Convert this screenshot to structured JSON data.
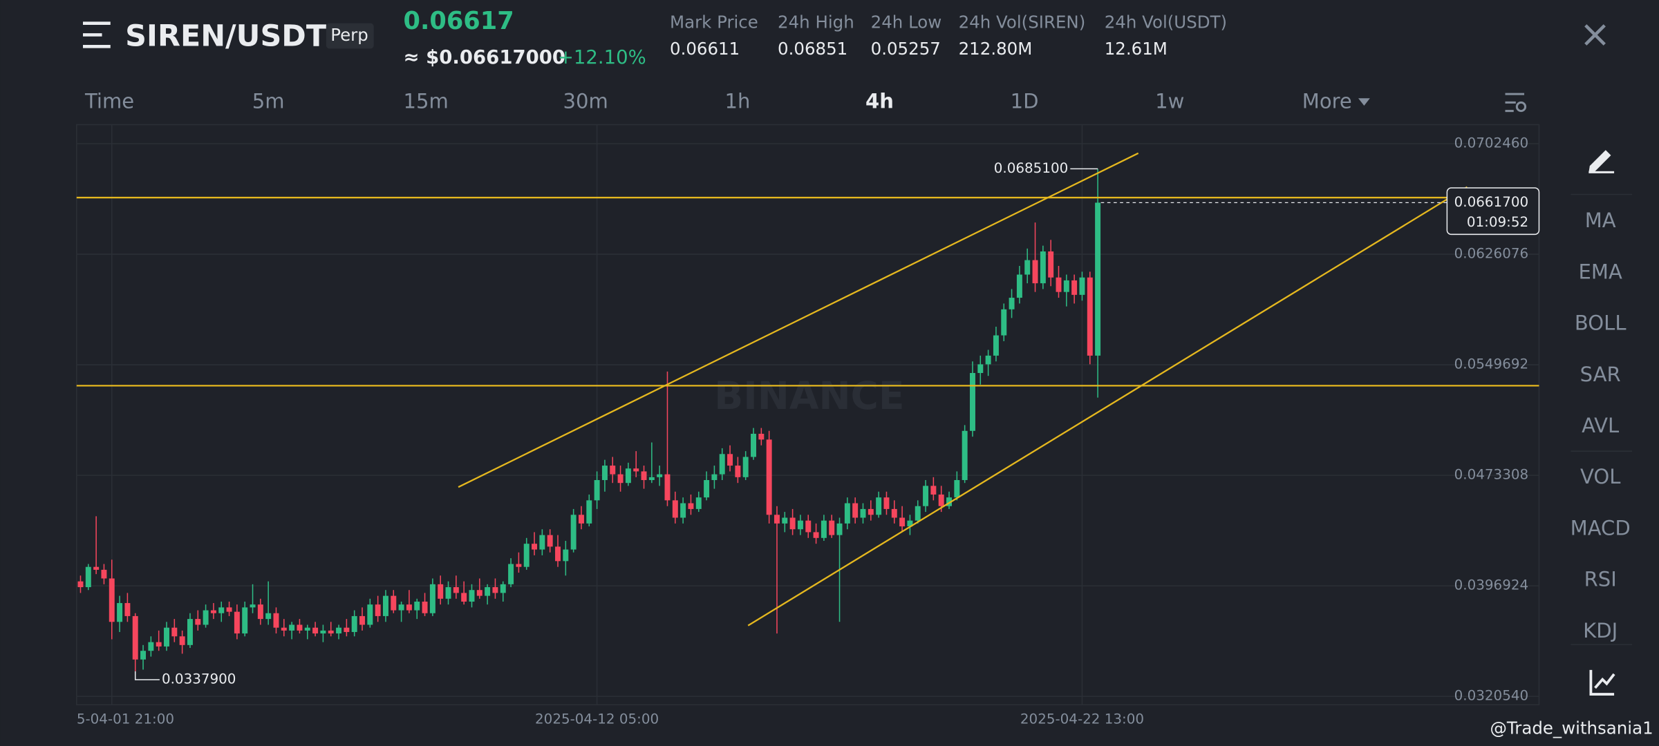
{
  "header": {
    "pair": "SIREN/USDT",
    "badge": "Perp",
    "last_price": "0.06617",
    "fiat_price": "≈ $0.06617000",
    "change": "+12.10%",
    "stats": [
      {
        "label": "Mark Price",
        "value": "0.06611"
      },
      {
        "label": "24h High",
        "value": "0.06851"
      },
      {
        "label": "24h Low",
        "value": "0.05257"
      },
      {
        "label": "24h Vol(SIREN)",
        "value": "212.80M"
      },
      {
        "label": "24h Vol(USDT)",
        "value": "12.61M"
      }
    ]
  },
  "timeframes": {
    "items": [
      "Time",
      "5m",
      "15m",
      "30m",
      "1h",
      "4h",
      "1D",
      "1w",
      "More"
    ],
    "active": "4h"
  },
  "indicators": [
    "MA",
    "EMA",
    "BOLL",
    "SAR",
    "AVL",
    "VOL",
    "MACD",
    "RSI",
    "KDJ"
  ],
  "chart_data": {
    "type": "candlestick",
    "categories": [
      null,
      null,
      null,
      null,
      "5-04-01 21:00",
      null,
      null,
      null,
      null,
      null,
      null,
      null,
      null,
      null,
      null,
      null,
      null,
      null,
      null,
      null,
      null,
      null,
      null,
      null,
      null,
      null,
      null,
      null,
      null,
      null,
      null,
      null,
      null,
      null,
      null,
      null,
      null,
      null,
      null,
      null,
      null,
      null,
      null,
      null,
      null,
      null,
      null,
      null,
      null,
      null,
      null,
      null,
      null,
      null,
      null,
      null,
      null,
      null,
      null,
      null,
      null,
      null,
      null,
      null,
      null,
      null,
      "2025-04-12 05:00",
      null,
      null,
      null,
      null,
      null,
      null,
      null,
      null,
      null,
      null,
      null,
      null,
      null,
      null,
      null,
      null,
      null,
      null,
      null,
      null,
      null,
      null,
      null,
      null,
      null,
      null,
      null,
      null,
      null,
      null,
      null,
      null,
      null,
      null,
      null,
      null,
      null,
      null,
      null,
      null,
      null,
      null,
      null,
      null,
      null,
      null,
      null,
      null,
      null,
      null,
      null,
      null,
      null,
      null,
      null,
      null,
      null,
      null,
      null,
      null,
      null,
      "2025-04-22 13:00",
      null,
      null
    ],
    "candles": [
      [
        0.04,
        0.0404,
        0.0392,
        0.0396
      ],
      [
        0.0396,
        0.0412,
        0.0394,
        0.041
      ],
      [
        0.041,
        0.0445,
        0.0405,
        0.0408
      ],
      [
        0.0408,
        0.0412,
        0.0398,
        0.0402
      ],
      [
        0.0402,
        0.0415,
        0.036,
        0.0372
      ],
      [
        0.0372,
        0.039,
        0.0365,
        0.0385
      ],
      [
        0.0385,
        0.0392,
        0.0372,
        0.0376
      ],
      [
        0.0376,
        0.0378,
        0.03379,
        0.0346
      ],
      [
        0.0346,
        0.0356,
        0.0339,
        0.0352
      ],
      [
        0.0352,
        0.0362,
        0.0348,
        0.0358
      ],
      [
        0.0358,
        0.0366,
        0.0352,
        0.0355
      ],
      [
        0.0355,
        0.0372,
        0.0352,
        0.0368
      ],
      [
        0.0368,
        0.0374,
        0.0358,
        0.0362
      ],
      [
        0.0362,
        0.0366,
        0.035,
        0.0356
      ],
      [
        0.0356,
        0.0378,
        0.0354,
        0.0374
      ],
      [
        0.0374,
        0.038,
        0.0366,
        0.037
      ],
      [
        0.037,
        0.0384,
        0.0368,
        0.038
      ],
      [
        0.038,
        0.0385,
        0.0374,
        0.0378
      ],
      [
        0.0378,
        0.0386,
        0.0372,
        0.0382
      ],
      [
        0.0382,
        0.0386,
        0.0376,
        0.0379
      ],
      [
        0.0379,
        0.0384,
        0.036,
        0.0364
      ],
      [
        0.0364,
        0.0386,
        0.0362,
        0.0382
      ],
      [
        0.0382,
        0.0398,
        0.0378,
        0.0384
      ],
      [
        0.0384,
        0.0388,
        0.037,
        0.0374
      ],
      [
        0.0374,
        0.04,
        0.037,
        0.0378
      ],
      [
        0.0378,
        0.0382,
        0.0364,
        0.0368
      ],
      [
        0.0368,
        0.0374,
        0.0362,
        0.0366
      ],
      [
        0.0366,
        0.0372,
        0.036,
        0.037
      ],
      [
        0.037,
        0.0374,
        0.0364,
        0.0366
      ],
      [
        0.0366,
        0.037,
        0.036,
        0.0368
      ],
      [
        0.0368,
        0.0372,
        0.0362,
        0.0364
      ],
      [
        0.0364,
        0.037,
        0.0358,
        0.0366
      ],
      [
        0.0366,
        0.0372,
        0.0362,
        0.0364
      ],
      [
        0.0364,
        0.037,
        0.036,
        0.0368
      ],
      [
        0.0368,
        0.0374,
        0.0362,
        0.0365
      ],
      [
        0.0365,
        0.038,
        0.0362,
        0.0376
      ],
      [
        0.0376,
        0.0382,
        0.0366,
        0.037
      ],
      [
        0.037,
        0.0388,
        0.0368,
        0.0384
      ],
      [
        0.0384,
        0.039,
        0.0372,
        0.0376
      ],
      [
        0.0376,
        0.0394,
        0.0372,
        0.039
      ],
      [
        0.039,
        0.0394,
        0.0378,
        0.038
      ],
      [
        0.038,
        0.0386,
        0.0372,
        0.0384
      ],
      [
        0.0384,
        0.0394,
        0.0378,
        0.038
      ],
      [
        0.038,
        0.0388,
        0.0374,
        0.0386
      ],
      [
        0.0386,
        0.0392,
        0.0376,
        0.0378
      ],
      [
        0.0378,
        0.0402,
        0.0376,
        0.0398
      ],
      [
        0.0398,
        0.0404,
        0.0384,
        0.0388
      ],
      [
        0.0388,
        0.04,
        0.0384,
        0.0396
      ],
      [
        0.0396,
        0.0404,
        0.0388,
        0.0392
      ],
      [
        0.0392,
        0.04,
        0.0384,
        0.0386
      ],
      [
        0.0386,
        0.0398,
        0.0382,
        0.0394
      ],
      [
        0.0394,
        0.0402,
        0.0388,
        0.039
      ],
      [
        0.039,
        0.0398,
        0.0384,
        0.0396
      ],
      [
        0.0396,
        0.0402,
        0.0388,
        0.0392
      ],
      [
        0.0392,
        0.04,
        0.0386,
        0.0398
      ],
      [
        0.0398,
        0.0416,
        0.0396,
        0.0412
      ],
      [
        0.0412,
        0.042,
        0.0406,
        0.041
      ],
      [
        0.041,
        0.043,
        0.0408,
        0.0426
      ],
      [
        0.0426,
        0.0434,
        0.0418,
        0.0422
      ],
      [
        0.0422,
        0.0436,
        0.0418,
        0.0432
      ],
      [
        0.0432,
        0.0436,
        0.042,
        0.0424
      ],
      [
        0.0424,
        0.0432,
        0.041,
        0.0414
      ],
      [
        0.0414,
        0.0428,
        0.0404,
        0.0422
      ],
      [
        0.0422,
        0.045,
        0.042,
        0.0446
      ],
      [
        0.0446,
        0.0452,
        0.0436,
        0.044
      ],
      [
        0.044,
        0.046,
        0.0438,
        0.0456
      ],
      [
        0.0456,
        0.0476,
        0.045,
        0.047
      ],
      [
        0.047,
        0.0484,
        0.0462,
        0.048
      ],
      [
        0.048,
        0.0486,
        0.0468,
        0.0474
      ],
      [
        0.0474,
        0.048,
        0.0462,
        0.0468
      ],
      [
        0.0468,
        0.0482,
        0.0466,
        0.0478
      ],
      [
        0.0478,
        0.049,
        0.0472,
        0.0476
      ],
      [
        0.0476,
        0.048,
        0.0464,
        0.047
      ],
      [
        0.047,
        0.0496,
        0.0468,
        0.0472
      ],
      [
        0.0472,
        0.048,
        0.0466,
        0.0474
      ],
      [
        0.0474,
        0.0545,
        0.0452,
        0.0456
      ],
      [
        0.0456,
        0.0462,
        0.044,
        0.0444
      ],
      [
        0.0444,
        0.0458,
        0.044,
        0.0454
      ],
      [
        0.0454,
        0.046,
        0.0446,
        0.045
      ],
      [
        0.045,
        0.0462,
        0.0448,
        0.0458
      ],
      [
        0.0458,
        0.0476,
        0.0456,
        0.047
      ],
      [
        0.047,
        0.048,
        0.0464,
        0.0474
      ],
      [
        0.0474,
        0.0492,
        0.047,
        0.0488
      ],
      [
        0.0488,
        0.0494,
        0.0476,
        0.048
      ],
      [
        0.048,
        0.0486,
        0.0468,
        0.0472
      ],
      [
        0.0472,
        0.049,
        0.047,
        0.0486
      ],
      [
        0.0486,
        0.0506,
        0.0484,
        0.0502
      ],
      [
        0.0502,
        0.0506,
        0.0494,
        0.0498
      ],
      [
        0.0498,
        0.0504,
        0.044,
        0.0446
      ],
      [
        0.0446,
        0.0452,
        0.0364,
        0.044
      ],
      [
        0.044,
        0.0448,
        0.0434,
        0.0444
      ],
      [
        0.0444,
        0.045,
        0.0432,
        0.0436
      ],
      [
        0.0436,
        0.0446,
        0.0432,
        0.0442
      ],
      [
        0.0442,
        0.0446,
        0.043,
        0.0434
      ],
      [
        0.0434,
        0.044,
        0.0426,
        0.043
      ],
      [
        0.043,
        0.0446,
        0.0428,
        0.0442
      ],
      [
        0.0442,
        0.0446,
        0.043,
        0.0432
      ],
      [
        0.0432,
        0.0444,
        0.0372,
        0.044
      ],
      [
        0.044,
        0.0458,
        0.0436,
        0.0454
      ],
      [
        0.0454,
        0.0458,
        0.044,
        0.0444
      ],
      [
        0.0444,
        0.0454,
        0.044,
        0.045
      ],
      [
        0.045,
        0.0456,
        0.0442,
        0.0446
      ],
      [
        0.0446,
        0.0462,
        0.0444,
        0.0458
      ],
      [
        0.0458,
        0.0462,
        0.0446,
        0.045
      ],
      [
        0.045,
        0.0456,
        0.044,
        0.0444
      ],
      [
        0.0444,
        0.0452,
        0.0434,
        0.0438
      ],
      [
        0.0438,
        0.0446,
        0.0432,
        0.0442
      ],
      [
        0.0442,
        0.0456,
        0.044,
        0.0452
      ],
      [
        0.0452,
        0.047,
        0.0448,
        0.0466
      ],
      [
        0.0466,
        0.0472,
        0.0456,
        0.046
      ],
      [
        0.046,
        0.0466,
        0.0448,
        0.0452
      ],
      [
        0.0452,
        0.0462,
        0.045,
        0.0458
      ],
      [
        0.0458,
        0.0476,
        0.0456,
        0.047
      ],
      [
        0.047,
        0.0508,
        0.0468,
        0.0504
      ],
      [
        0.0504,
        0.0552,
        0.05,
        0.0544
      ],
      [
        0.0544,
        0.0556,
        0.0536,
        0.055
      ],
      [
        0.055,
        0.056,
        0.0542,
        0.0556
      ],
      [
        0.0556,
        0.0576,
        0.0552,
        0.057
      ],
      [
        0.057,
        0.0592,
        0.0566,
        0.0588
      ],
      [
        0.0588,
        0.0602,
        0.0582,
        0.0596
      ],
      [
        0.0596,
        0.0618,
        0.0592,
        0.0612
      ],
      [
        0.0612,
        0.063,
        0.0606,
        0.0622
      ],
      [
        0.0622,
        0.0648,
        0.06,
        0.0606
      ],
      [
        0.0606,
        0.0632,
        0.0602,
        0.0628
      ],
      [
        0.0628,
        0.0636,
        0.0604,
        0.061
      ],
      [
        0.061,
        0.0618,
        0.0596,
        0.06
      ],
      [
        0.06,
        0.0612,
        0.059,
        0.0608
      ],
      [
        0.0608,
        0.0612,
        0.0592,
        0.0598
      ],
      [
        0.0598,
        0.0614,
        0.0594,
        0.061
      ],
      [
        0.061,
        0.0614,
        0.055,
        0.0556
      ],
      [
        0.0556,
        0.06851,
        0.0527,
        0.06617
      ]
    ],
    "up_color": "#2ebd85",
    "down_color": "#f6465d",
    "ylim": [
      0.03147,
      0.07156
    ],
    "yticks": [
      {
        "value": 0.070246,
        "label": "0.0702460"
      },
      0.0626076,
      0.0549692,
      0.0473308,
      0.0396924,
      {
        "value": 0.032054,
        "label": "0.0320540"
      }
    ],
    "grid": true,
    "annotations": {
      "high": {
        "value": 0.06851,
        "label": "0.0685100"
      },
      "low": {
        "value": 0.03379,
        "label": "0.0337900"
      },
      "last": {
        "value": 0.06617,
        "label": "0.0661700",
        "countdown": "01:09:52"
      }
    },
    "watermark": "BINANCE"
  },
  "credit": "@Trade_withsania1"
}
